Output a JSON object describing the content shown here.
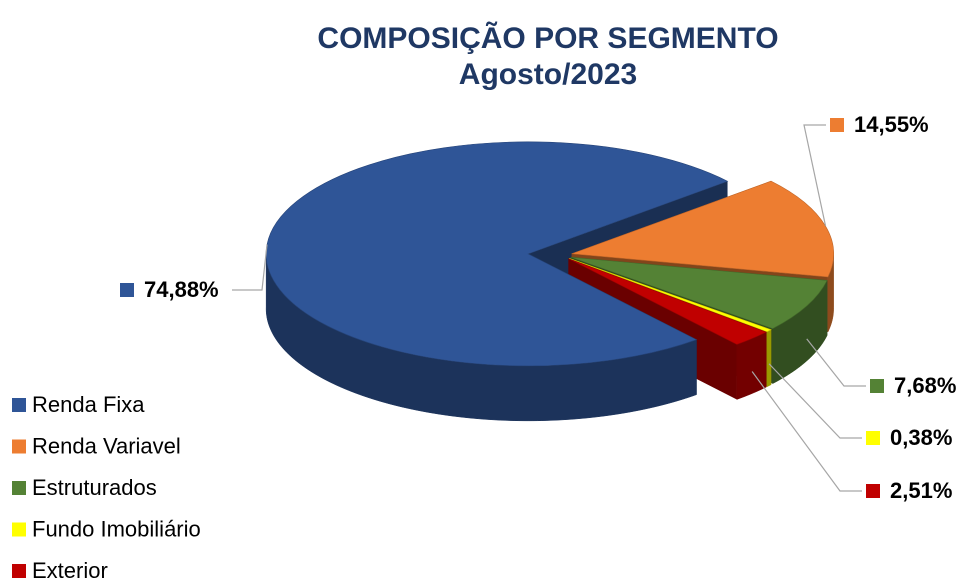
{
  "chart_data": {
    "type": "pie",
    "title": "COMPOSIÇÃO POR SEGMENTO",
    "subtitle": "Agosto/2023",
    "categories": [
      "Renda Fixa",
      "Renda Variavel",
      "Estruturados",
      "Fundo Imobiliário",
      "Exterior"
    ],
    "values": [
      74.88,
      14.55,
      7.68,
      0.38,
      2.51
    ],
    "value_labels": [
      "74,88%",
      "14,55%",
      "7,68%",
      "0,38%",
      "2,51%"
    ],
    "colors": [
      "#2f5597",
      "#ed7d31",
      "#548235",
      "#ffff00",
      "#c00000"
    ]
  }
}
